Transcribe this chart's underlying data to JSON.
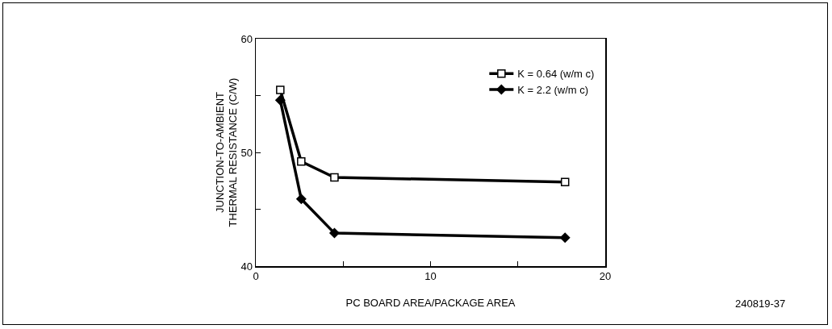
{
  "chart_data": {
    "type": "line",
    "xlabel": "PC BOARD AREA/PACKAGE AREA",
    "ylabel": "JUNCTION-TO-AMBIENT\nTHERMAL RESISTANCE (C/W)",
    "x": [
      1.4,
      2.6,
      4.5,
      17.7
    ],
    "series": [
      {
        "name": "K = 0.64 (w/m c)",
        "color": "#000000",
        "marker": "square",
        "values": [
          55.5,
          49.2,
          47.8,
          47.4
        ]
      },
      {
        "name": "K = 2.2 (w/m c)",
        "color": "#000000",
        "marker": "diamond",
        "values": [
          54.6,
          45.9,
          42.9,
          42.5
        ]
      }
    ],
    "xlim": [
      0,
      20
    ],
    "xticks": [
      0,
      {
        "value": 5,
        "label": null
      },
      10,
      {
        "value": 15,
        "label": null
      },
      20
    ],
    "ylim": [
      40,
      60
    ],
    "yticks": [
      40,
      {
        "value": 45,
        "label": null
      },
      50,
      {
        "value": 55,
        "label": null
      },
      60
    ],
    "grid": false,
    "legend": "top right",
    "line_style": "solid",
    "annotations": [
      "240819-37"
    ]
  }
}
